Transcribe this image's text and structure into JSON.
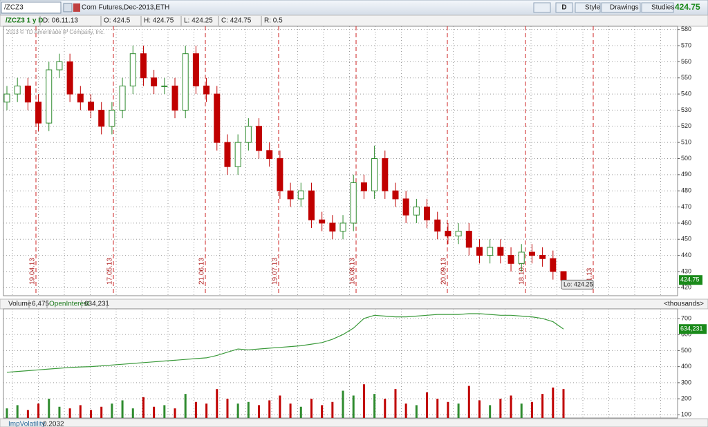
{
  "toolbar": {
    "symbol": "/ZCZ3",
    "description": "Corn Futures,Dec-2013,ETH",
    "buttons": [
      "D",
      "Style",
      "Drawings",
      "Studies"
    ],
    "last_price": "424.75"
  },
  "info_bar": [
    "/ZCZ3 1 y D",
    "D: 06.11.13",
    "O: 424.5",
    "H: 424.75",
    "L: 424.25",
    "C: 424.75",
    "R: 0.5"
  ],
  "watermark": "2013 © TD Ameritrade IP Company, Inc.",
  "footer": {
    "study": "ImpVolatility",
    "value": "0.2032"
  },
  "chart_data": [
    {
      "type": "candlestick",
      "open": [
        535,
        540,
        545,
        535,
        522,
        555,
        560,
        540,
        535,
        530,
        520,
        530,
        545,
        565,
        550,
        545,
        545,
        530,
        565,
        545,
        540,
        510,
        495,
        510,
        520,
        505,
        500,
        480,
        475,
        480,
        462,
        460,
        455,
        460,
        485,
        480,
        500,
        480,
        475,
        465,
        470,
        462,
        455,
        452,
        455,
        445,
        440,
        445,
        440,
        435,
        442,
        440,
        438,
        430
      ],
      "high": [
        545,
        550,
        550,
        540,
        560,
        565,
        565,
        545,
        540,
        535,
        535,
        550,
        570,
        570,
        555,
        550,
        550,
        570,
        570,
        550,
        545,
        515,
        515,
        525,
        525,
        510,
        505,
        485,
        485,
        485,
        467,
        465,
        465,
        490,
        490,
        508,
        505,
        485,
        480,
        475,
        475,
        467,
        460,
        460,
        460,
        450,
        450,
        450,
        445,
        447,
        447,
        445,
        443,
        430
      ],
      "low": [
        530,
        535,
        530,
        517,
        517,
        550,
        535,
        530,
        525,
        515,
        515,
        525,
        540,
        545,
        540,
        540,
        525,
        525,
        540,
        535,
        505,
        490,
        490,
        505,
        500,
        495,
        475,
        470,
        470,
        457,
        455,
        450,
        450,
        455,
        475,
        475,
        475,
        470,
        460,
        460,
        457,
        450,
        447,
        447,
        440,
        435,
        435,
        435,
        430,
        430,
        435,
        433,
        425,
        424.25
      ],
      "close": [
        540,
        545,
        535,
        522,
        555,
        560,
        540,
        535,
        530,
        520,
        530,
        545,
        565,
        550,
        545,
        545,
        530,
        565,
        545,
        540,
        510,
        495,
        510,
        520,
        505,
        500,
        480,
        475,
        480,
        462,
        460,
        455,
        460,
        485,
        480,
        500,
        480,
        475,
        465,
        470,
        462,
        455,
        452,
        455,
        445,
        440,
        445,
        440,
        435,
        442,
        440,
        438,
        430,
        424.75
      ],
      "up_color": "#2e8b2e",
      "down_color": "#c00000",
      "ylim": [
        415,
        582
      ],
      "yticks": [
        420,
        430,
        440,
        450,
        460,
        470,
        480,
        490,
        500,
        510,
        520,
        530,
        540,
        550,
        560,
        570,
        580
      ],
      "grid": true,
      "date_markers": [
        "19.04.13",
        "17.05.13",
        "21.06.13",
        "19.07.13",
        "16.08.13",
        "20.09.13",
        "18.10.13",
        "11.13"
      ],
      "last_price_label": "424.75",
      "low_label": "Lo: 424.25"
    },
    {
      "type": "volume",
      "series": [
        {
          "name": "Volume",
          "values": [
            140,
            160,
            130,
            170,
            200,
            150,
            140,
            160,
            130,
            150,
            170,
            190,
            140,
            210,
            150,
            160,
            140,
            230,
            180,
            170,
            260,
            200,
            170,
            180,
            160,
            190,
            220,
            170,
            150,
            200,
            160,
            180,
            250,
            220,
            290,
            230,
            200,
            260,
            170,
            160,
            240,
            200,
            180,
            170,
            280,
            190,
            160,
            200,
            220,
            170,
            180,
            230,
            270,
            260
          ]
        },
        {
          "name": "OpenInterest",
          "color": "#3a9a3a",
          "values": [
            365,
            370,
            375,
            380,
            385,
            390,
            395,
            398,
            400,
            405,
            410,
            415,
            420,
            425,
            430,
            435,
            440,
            445,
            450,
            455,
            470,
            490,
            510,
            505,
            510,
            515,
            520,
            525,
            530,
            540,
            550,
            570,
            600,
            640,
            700,
            720,
            715,
            710,
            710,
            715,
            720,
            725,
            725,
            725,
            730,
            730,
            725,
            720,
            720,
            715,
            710,
            700,
            680,
            634.231
          ]
        }
      ],
      "current_labels": [
        "6,475",
        "634,231"
      ],
      "unit_label": "<thousands>",
      "ylim": [
        80,
        760
      ],
      "yticks": [
        100,
        200,
        300,
        400,
        500,
        600,
        700
      ],
      "grid": true
    }
  ]
}
